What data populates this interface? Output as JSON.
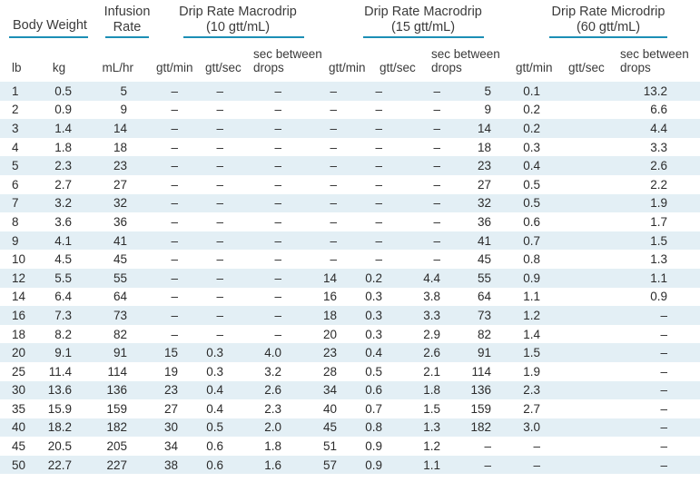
{
  "header": {
    "body_weight": "Body Weight",
    "infusion_rate_l1": "Infusion",
    "infusion_rate_l2": "Rate",
    "macro10_l1": "Drip Rate Macrodrip",
    "macro10_l2": "(10 gtt/mL)",
    "macro15_l1": "Drip Rate Macrodrip",
    "macro15_l2": "(15 gtt/mL)",
    "micro60_l1": "Drip Rate Microdrip",
    "micro60_l2": "(60 gtt/mL)",
    "col_lb": "lb",
    "col_kg": "kg",
    "col_mlhr": "mL/hr",
    "col_gttmin": "gtt/min",
    "col_gttsec": "gtt/sec",
    "col_sec_l1": "sec between",
    "col_sec_l2": "drops"
  },
  "rows": [
    [
      "1",
      "0.5",
      "5",
      "–",
      "–",
      "–",
      "–",
      "–",
      "–",
      "5",
      "0.1",
      "13.2"
    ],
    [
      "2",
      "0.9",
      "9",
      "–",
      "–",
      "–",
      "–",
      "–",
      "–",
      "9",
      "0.2",
      "6.6"
    ],
    [
      "3",
      "1.4",
      "14",
      "–",
      "–",
      "–",
      "–",
      "–",
      "–",
      "14",
      "0.2",
      "4.4"
    ],
    [
      "4",
      "1.8",
      "18",
      "–",
      "–",
      "–",
      "–",
      "–",
      "–",
      "18",
      "0.3",
      "3.3"
    ],
    [
      "5",
      "2.3",
      "23",
      "–",
      "–",
      "–",
      "–",
      "–",
      "–",
      "23",
      "0.4",
      "2.6"
    ],
    [
      "6",
      "2.7",
      "27",
      "–",
      "–",
      "–",
      "–",
      "–",
      "–",
      "27",
      "0.5",
      "2.2"
    ],
    [
      "7",
      "3.2",
      "32",
      "–",
      "–",
      "–",
      "–",
      "–",
      "–",
      "32",
      "0.5",
      "1.9"
    ],
    [
      "8",
      "3.6",
      "36",
      "–",
      "–",
      "–",
      "–",
      "–",
      "–",
      "36",
      "0.6",
      "1.7"
    ],
    [
      "9",
      "4.1",
      "41",
      "–",
      "–",
      "–",
      "–",
      "–",
      "–",
      "41",
      "0.7",
      "1.5"
    ],
    [
      "10",
      "4.5",
      "45",
      "–",
      "–",
      "–",
      "–",
      "–",
      "–",
      "45",
      "0.8",
      "1.3"
    ],
    [
      "12",
      "5.5",
      "55",
      "–",
      "–",
      "–",
      "14",
      "0.2",
      "4.4",
      "55",
      "0.9",
      "1.1"
    ],
    [
      "14",
      "6.4",
      "64",
      "–",
      "–",
      "–",
      "16",
      "0.3",
      "3.8",
      "64",
      "1.1",
      "0.9"
    ],
    [
      "16",
      "7.3",
      "73",
      "–",
      "–",
      "–",
      "18",
      "0.3",
      "3.3",
      "73",
      "1.2",
      "–"
    ],
    [
      "18",
      "8.2",
      "82",
      "–",
      "–",
      "–",
      "20",
      "0.3",
      "2.9",
      "82",
      "1.4",
      "–"
    ],
    [
      "20",
      "9.1",
      "91",
      "15",
      "0.3",
      "4.0",
      "23",
      "0.4",
      "2.6",
      "91",
      "1.5",
      "–"
    ],
    [
      "25",
      "11.4",
      "114",
      "19",
      "0.3",
      "3.2",
      "28",
      "0.5",
      "2.1",
      "114",
      "1.9",
      "–"
    ],
    [
      "30",
      "13.6",
      "136",
      "23",
      "0.4",
      "2.6",
      "34",
      "0.6",
      "1.8",
      "136",
      "2.3",
      "–"
    ],
    [
      "35",
      "15.9",
      "159",
      "27",
      "0.4",
      "2.3",
      "40",
      "0.7",
      "1.5",
      "159",
      "2.7",
      "–"
    ],
    [
      "40",
      "18.2",
      "182",
      "30",
      "0.5",
      "2.0",
      "45",
      "0.8",
      "1.3",
      "182",
      "3.0",
      "–"
    ],
    [
      "45",
      "20.5",
      "205",
      "34",
      "0.6",
      "1.8",
      "51",
      "0.9",
      "1.2",
      "–",
      "–",
      "–"
    ],
    [
      "50",
      "22.7",
      "227",
      "38",
      "0.6",
      "1.6",
      "57",
      "0.9",
      "1.1",
      "–",
      "–",
      "–"
    ]
  ],
  "colors": {
    "underline": "#1c8fb5",
    "stripe": "#e3eff5"
  }
}
